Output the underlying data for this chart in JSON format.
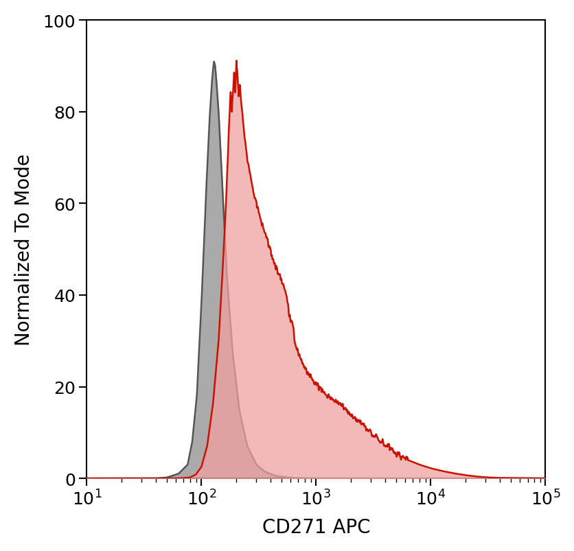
{
  "title": "",
  "xlabel": "CD271 APC",
  "ylabel": "Normalized To Mode",
  "xlim_log": [
    10,
    100000
  ],
  "ylim": [
    0,
    100
  ],
  "yticks": [
    0,
    20,
    40,
    60,
    80,
    100
  ],
  "gray_fill_color": "#aaaaaa",
  "gray_line_color": "#555555",
  "red_fill_color": "#f0a0a0",
  "red_line_color": "#cc1100",
  "xlabel_fontsize": 20,
  "ylabel_fontsize": 20,
  "tick_fontsize": 18,
  "background_color": "#ffffff",
  "spine_color": "#000000",
  "linewidth": 1.8,
  "gray_curve": [
    [
      1.5,
      0
    ],
    [
      1.6,
      0
    ],
    [
      1.7,
      0.2
    ],
    [
      1.8,
      1.0
    ],
    [
      1.88,
      3.0
    ],
    [
      1.92,
      8.0
    ],
    [
      1.96,
      18.0
    ],
    [
      2.0,
      38.0
    ],
    [
      2.04,
      62.0
    ],
    [
      2.07,
      78.0
    ],
    [
      2.09,
      86.0
    ],
    [
      2.1,
      89.0
    ],
    [
      2.11,
      91.0
    ],
    [
      2.12,
      90.0
    ],
    [
      2.13,
      87.0
    ],
    [
      2.15,
      80.0
    ],
    [
      2.18,
      65.0
    ],
    [
      2.22,
      45.0
    ],
    [
      2.27,
      28.0
    ],
    [
      2.33,
      15.0
    ],
    [
      2.4,
      7.0
    ],
    [
      2.48,
      3.0
    ],
    [
      2.55,
      1.5
    ],
    [
      2.65,
      0.5
    ],
    [
      2.8,
      0.1
    ],
    [
      3.0,
      0
    ]
  ],
  "red_curve": [
    [
      1.7,
      0
    ],
    [
      1.8,
      0.0
    ],
    [
      1.9,
      0.2
    ],
    [
      1.95,
      0.8
    ],
    [
      2.0,
      2.5
    ],
    [
      2.05,
      7.0
    ],
    [
      2.1,
      16.0
    ],
    [
      2.15,
      30.0
    ],
    [
      2.18,
      43.0
    ],
    [
      2.21,
      58.0
    ],
    [
      2.23,
      70.0
    ],
    [
      2.245,
      80.0
    ],
    [
      2.255,
      84.0
    ],
    [
      2.265,
      80.0
    ],
    [
      2.275,
      84.5
    ],
    [
      2.285,
      88.0
    ],
    [
      2.295,
      84.0
    ],
    [
      2.305,
      91.0
    ],
    [
      2.315,
      88.0
    ],
    [
      2.325,
      84.0
    ],
    [
      2.335,
      86.0
    ],
    [
      2.345,
      82.0
    ],
    [
      2.36,
      79.0
    ],
    [
      2.38,
      74.0
    ],
    [
      2.4,
      70.0
    ],
    [
      2.45,
      63.0
    ],
    [
      2.5,
      58.0
    ],
    [
      2.55,
      54.0
    ],
    [
      2.6,
      50.0
    ],
    [
      2.65,
      46.0
    ],
    [
      2.7,
      43.0
    ],
    [
      2.73,
      41.0
    ],
    [
      2.75,
      39.0
    ],
    [
      2.77,
      35.0
    ],
    [
      2.8,
      33.0
    ],
    [
      2.82,
      29.0
    ],
    [
      2.85,
      27.0
    ],
    [
      2.9,
      24.0
    ],
    [
      2.95,
      22.0
    ],
    [
      3.0,
      20.5
    ],
    [
      3.05,
      19.0
    ],
    [
      3.1,
      18.0
    ],
    [
      3.2,
      16.5
    ],
    [
      3.3,
      14.0
    ],
    [
      3.4,
      12.0
    ],
    [
      3.5,
      9.5
    ],
    [
      3.6,
      7.5
    ],
    [
      3.7,
      5.5
    ],
    [
      3.8,
      4.0
    ],
    [
      3.9,
      3.0
    ],
    [
      4.0,
      2.2
    ],
    [
      4.1,
      1.6
    ],
    [
      4.2,
      1.1
    ],
    [
      4.3,
      0.7
    ],
    [
      4.4,
      0.4
    ],
    [
      4.5,
      0.2
    ],
    [
      4.6,
      0.1
    ],
    [
      5.0,
      0
    ]
  ]
}
